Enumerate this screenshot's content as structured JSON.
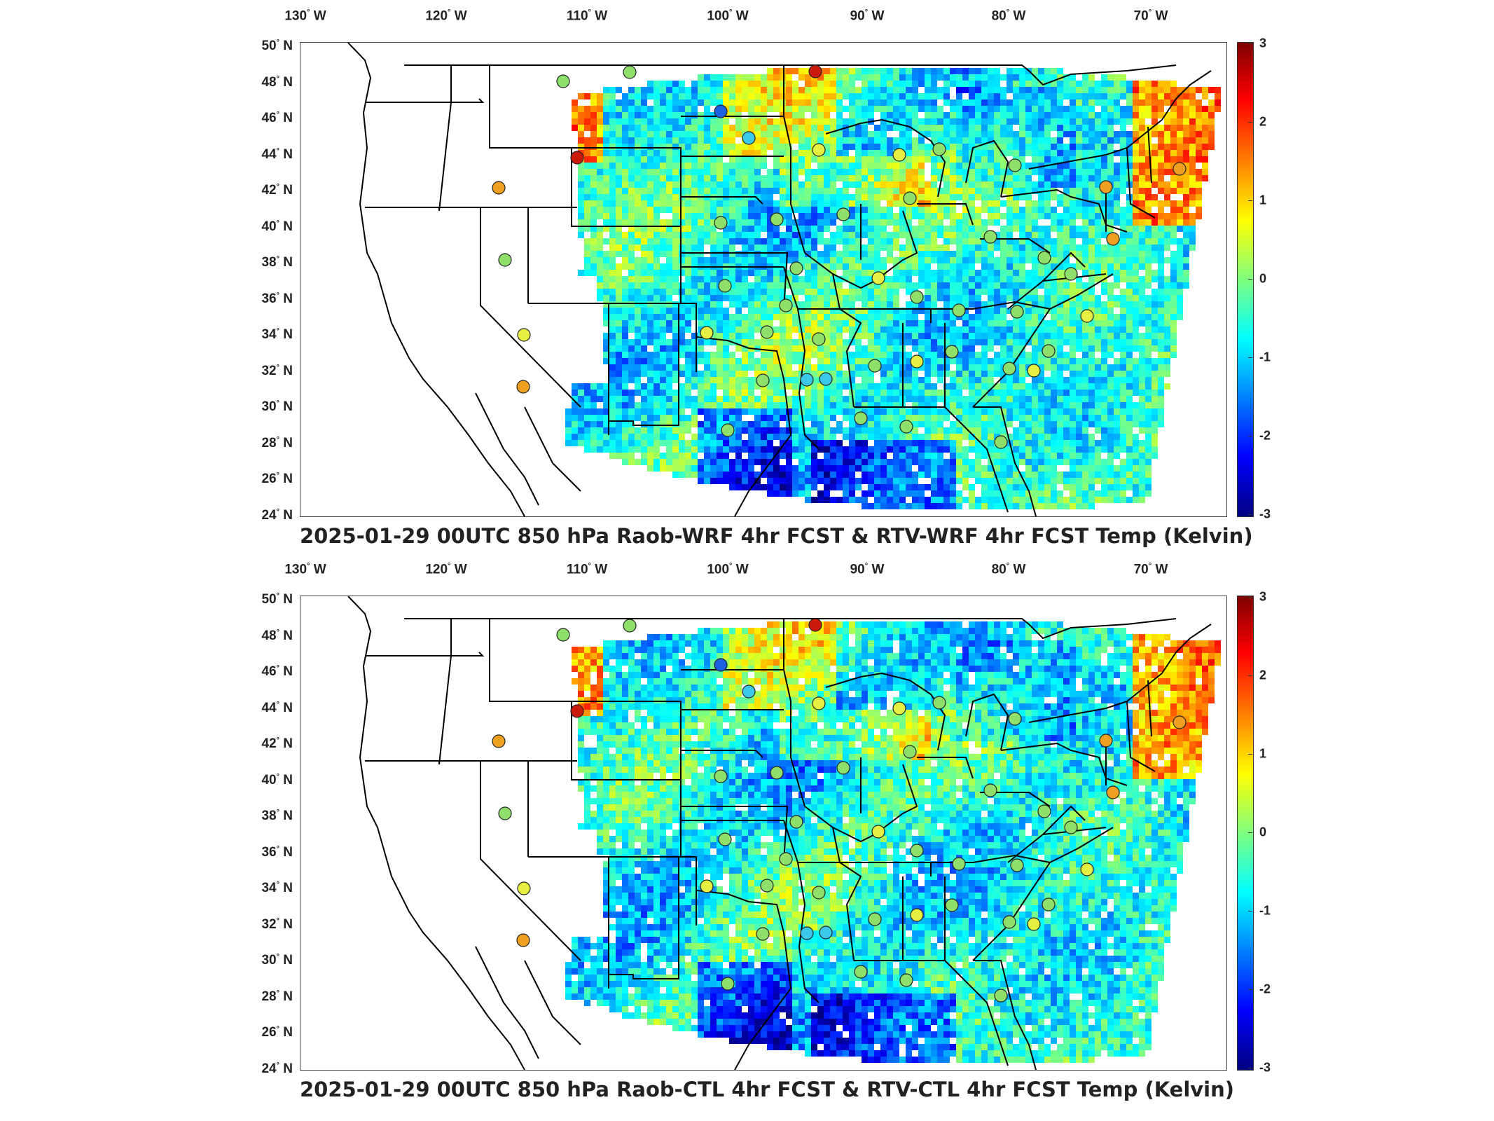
{
  "longitude_labels": [
    "130",
    "120",
    "110",
    "100",
    "90",
    "80",
    "70"
  ],
  "longitude_suffix": "W",
  "latitude_labels": [
    "50",
    "48",
    "46",
    "44",
    "42",
    "40",
    "38",
    "36",
    "34",
    "32",
    "30",
    "28",
    "26",
    "24"
  ],
  "latitude_suffix": "N",
  "degree_symbol": "°",
  "colorbar_ticks": [
    "3",
    "2",
    "1",
    "0",
    "-1",
    "-2",
    "-3"
  ],
  "colorbar_range": [
    -3,
    3
  ],
  "colormap": "jet",
  "panels": [
    {
      "caption": "2025-01-29 00UTC 850 hPa Raob-WRF 4hr FCST & RTV-WRF 4hr FCST Temp (Kelvin)"
    },
    {
      "caption": "2025-01-29 00UTC 850 hPa Raob-CTL 4hr FCST & RTV-CTL 4hr FCST Temp (Kelvin)"
    }
  ],
  "colors": {
    "very_warm": "#cc1a0a",
    "warm": "#f0a020",
    "neutral": "#8fe06a",
    "slight_warm": "#e6f040",
    "cool": "#3cc8e8",
    "cold": "#1a60e0"
  }
}
